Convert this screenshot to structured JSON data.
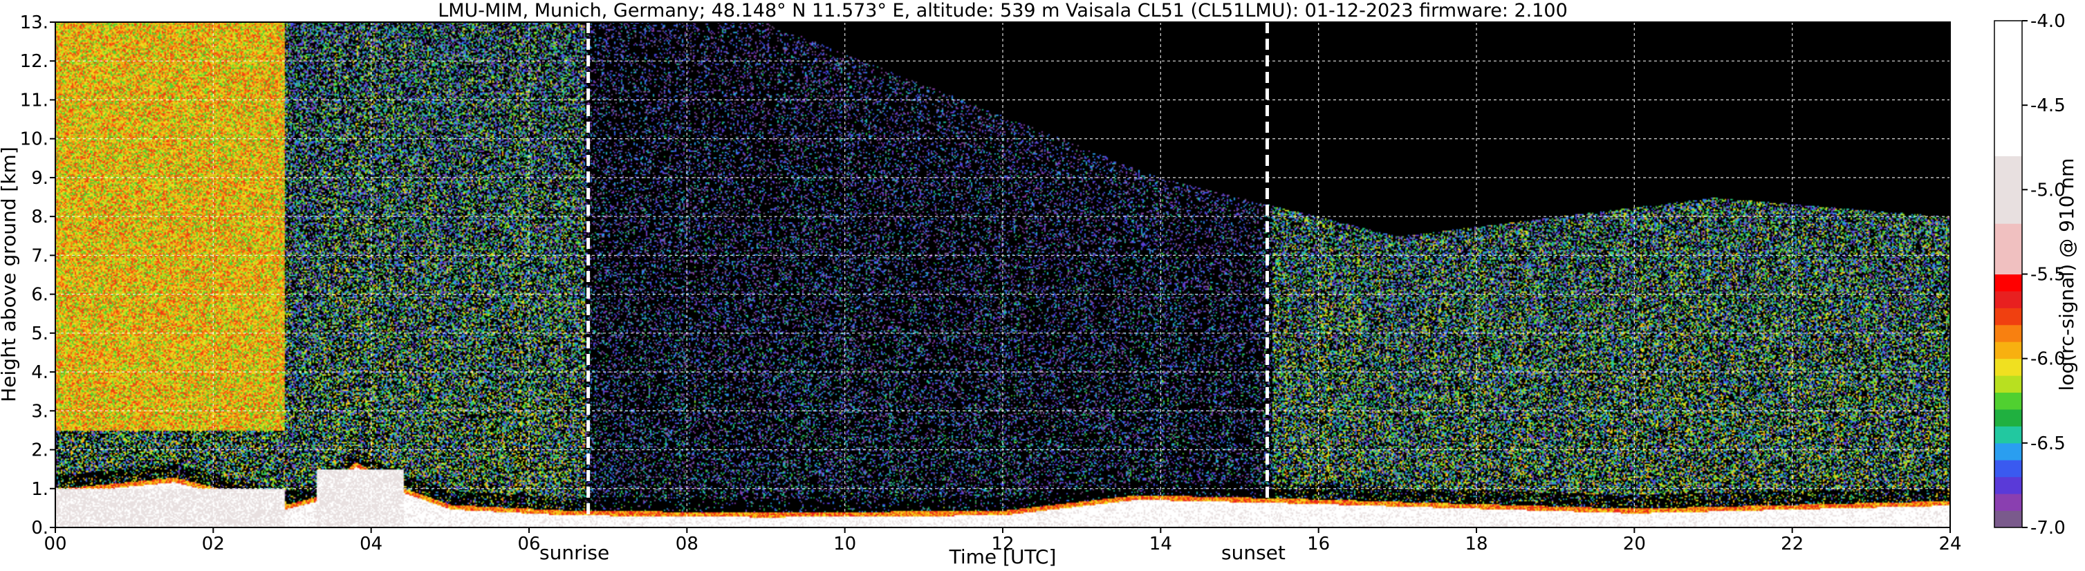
{
  "chart_data": {
    "type": "heatmap",
    "title": "LMU-MIM, Munich, Germany; 48.148° N 11.573° E, altitude: 539 m    Vaisala CL51 (CL51LMU): 01-12-2023    firmware: 2.100",
    "xlabel": "Time [UTC]",
    "ylabel": "Height above ground [km]",
    "xlim": [
      0,
      24
    ],
    "ylim": [
      0,
      13
    ],
    "x_tick_values": [
      0,
      2,
      4,
      6,
      8,
      10,
      12,
      14,
      16,
      18,
      20,
      22,
      24
    ],
    "x_tick_labels": [
      "00",
      "02",
      "04",
      "06",
      "08",
      "10",
      "12",
      "14",
      "16",
      "18",
      "20",
      "22",
      "24"
    ],
    "y_tick_values": [
      0,
      1,
      2,
      3,
      4,
      5,
      6,
      7,
      8,
      9,
      10,
      11,
      12,
      13
    ],
    "y_tick_labels": [
      "0.",
      "1.",
      "2.",
      "3.",
      "4.",
      "5.",
      "6.",
      "7.",
      "8.",
      "9.",
      "10.",
      "11.",
      "12.",
      "13."
    ],
    "grid": true,
    "colorbar": {
      "label": "log(rc-signal) @ 910 nm",
      "range": [
        -7.0,
        -4.0
      ],
      "tick_values": [
        -4.0,
        -4.5,
        -5.0,
        -5.5,
        -6.0,
        -6.5,
        -7.0
      ],
      "tick_labels": [
        "-4.0",
        "-4.5",
        "-5.0",
        "-5.5",
        "-6.0",
        "-6.5",
        "-7.0"
      ],
      "levels": [
        {
          "from": -7.0,
          "to": -6.9,
          "color": "#7a5a8c"
        },
        {
          "from": -6.9,
          "to": -6.8,
          "color": "#8a3fb0"
        },
        {
          "from": -6.8,
          "to": -6.7,
          "color": "#5a3ad8"
        },
        {
          "from": -6.7,
          "to": -6.6,
          "color": "#3a5af0"
        },
        {
          "from": -6.6,
          "to": -6.5,
          "color": "#2a9ef0"
        },
        {
          "from": -6.5,
          "to": -6.4,
          "color": "#22c8a0"
        },
        {
          "from": -6.4,
          "to": -6.3,
          "color": "#20b040"
        },
        {
          "from": -6.3,
          "to": -6.2,
          "color": "#50d030"
        },
        {
          "from": -6.2,
          "to": -6.1,
          "color": "#b8e020"
        },
        {
          "from": -6.1,
          "to": -6.0,
          "color": "#f0e020"
        },
        {
          "from": -6.0,
          "to": -5.9,
          "color": "#f8b010"
        },
        {
          "from": -5.9,
          "to": -5.8,
          "color": "#f88010"
        },
        {
          "from": -5.8,
          "to": -5.7,
          "color": "#f04010"
        },
        {
          "from": -5.7,
          "to": -5.6,
          "color": "#e82020"
        },
        {
          "from": -5.6,
          "to": -5.5,
          "color": "#ff0000"
        },
        {
          "from": -5.5,
          "to": -5.2,
          "color": "#f0c0c0"
        },
        {
          "from": -5.2,
          "to": -4.8,
          "color": "#e8e0e0"
        },
        {
          "from": -4.8,
          "to": -4.0,
          "color": "#ffffff"
        }
      ]
    },
    "sunrise": {
      "time": 6.75,
      "label": "sunrise"
    },
    "sunset": {
      "time": 15.35,
      "label": "sunset"
    },
    "features": {
      "boundary_layer_top_km": [
        {
          "t": 0,
          "h": 1.0
        },
        {
          "t": 1.5,
          "h": 1.3
        },
        {
          "t": 2.9,
          "h": 0.6
        },
        {
          "t": 3.3,
          "h": 0.8
        },
        {
          "t": 3.8,
          "h": 1.7
        },
        {
          "t": 4.3,
          "h": 1.1
        },
        {
          "t": 5.0,
          "h": 0.6
        },
        {
          "t": 6.5,
          "h": 0.45
        },
        {
          "t": 9.0,
          "h": 0.4
        },
        {
          "t": 12.0,
          "h": 0.45
        },
        {
          "t": 13.7,
          "h": 0.85
        },
        {
          "t": 15.8,
          "h": 0.75
        },
        {
          "t": 20.0,
          "h": 0.5
        },
        {
          "t": 24,
          "h": 0.7
        }
      ],
      "dense_layer_km": [
        {
          "t_start": 0,
          "t_end": 2.9,
          "h_top": 1.0
        },
        {
          "t_start": 3.3,
          "t_end": 4.4,
          "h_top": 1.5
        }
      ],
      "noise_cap_km": [
        {
          "t": 0,
          "h": 13
        },
        {
          "t": 2.9,
          "h": 13
        },
        {
          "t": 4.8,
          "h": 13
        },
        {
          "t": 9,
          "h": 13
        },
        {
          "t": 14,
          "h": 9
        },
        {
          "t": 17,
          "h": 7.5
        },
        {
          "t": 21,
          "h": 8.5
        },
        {
          "t": 24,
          "h": 8
        }
      ]
    }
  }
}
